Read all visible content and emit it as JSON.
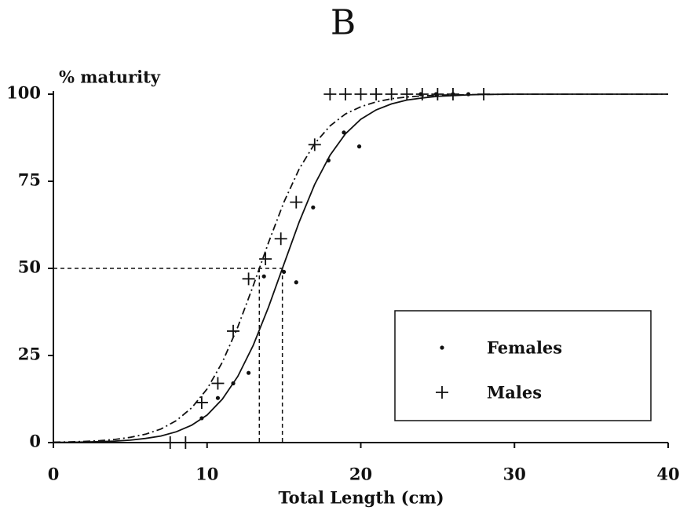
{
  "chart_data": {
    "type": "scatter",
    "title": "B",
    "ylabel": "% maturity",
    "xlabel": "Total Length (cm)",
    "xlim": [
      0,
      40
    ],
    "ylim": [
      0,
      100
    ],
    "xticks": [
      0,
      10,
      20,
      30,
      40
    ],
    "yticks": [
      0,
      25,
      50,
      75,
      100
    ],
    "legend": "lower right",
    "series": [
      {
        "name": "Females",
        "marker": "dot",
        "color": "#111111",
        "x": [
          9.65,
          10.7,
          11.7,
          12.7,
          13.7,
          15.0,
          15.8,
          16.9,
          17.9,
          18.9,
          19.9,
          23.9,
          24.9,
          26.0,
          27.0
        ],
        "values": [
          7,
          12.8,
          17,
          20,
          47.7,
          49,
          46,
          67.5,
          81,
          89,
          85,
          100,
          100,
          100,
          100
        ]
      },
      {
        "name": "Males",
        "marker": "plus",
        "color": "#111111",
        "x": [
          7.6,
          8.6,
          9.65,
          10.7,
          11.7,
          12.7,
          13.8,
          14.8,
          15.8,
          17.0,
          18,
          19,
          20,
          21,
          22,
          23,
          24,
          25,
          26,
          28
        ],
        "values": [
          0,
          0,
          11.5,
          17,
          32,
          47,
          52.7,
          58.5,
          69,
          85.5,
          100,
          100,
          100,
          100,
          100,
          100,
          100,
          100,
          100,
          100
        ]
      }
    ],
    "fits": [
      {
        "dash": "none",
        "l50": 14.9,
        "x": [
          0,
          1,
          2,
          3,
          4,
          5,
          6,
          7,
          8,
          9,
          10,
          11,
          12,
          13,
          14,
          15,
          16,
          17,
          18,
          19,
          20,
          21,
          22,
          23,
          24,
          25,
          26,
          27,
          28,
          30,
          40
        ],
        "values": [
          0.06,
          0.1,
          0.16,
          0.26,
          0.43,
          0.7,
          1.2,
          1.9,
          3.1,
          5.0,
          7.9,
          12.5,
          19.0,
          27.9,
          38.9,
          51.2,
          63.4,
          74.1,
          82.5,
          88.6,
          92.8,
          95.5,
          97.2,
          98.3,
          98.9,
          99.4,
          99.6,
          99.8,
          99.9,
          100,
          100
        ]
      },
      {
        "dash": "9 4 2 4",
        "l50": 13.4,
        "x": [
          0,
          1,
          2,
          3,
          4,
          5,
          6,
          7,
          8,
          9,
          10,
          11,
          12,
          13,
          14,
          15,
          16,
          17,
          18,
          19,
          20,
          21,
          22,
          23,
          24,
          25,
          26,
          28,
          30,
          40
        ],
        "values": [
          0.12,
          0.2,
          0.33,
          0.55,
          0.9,
          1.5,
          2.4,
          3.9,
          6.3,
          10.0,
          15.4,
          23.1,
          33.2,
          45.0,
          57.4,
          69.0,
          78.6,
          85.8,
          90.9,
          94.3,
          96.4,
          97.8,
          98.7,
          99.2,
          99.5,
          99.7,
          99.8,
          99.9,
          100,
          100
        ]
      }
    ],
    "reference_y": 50
  }
}
